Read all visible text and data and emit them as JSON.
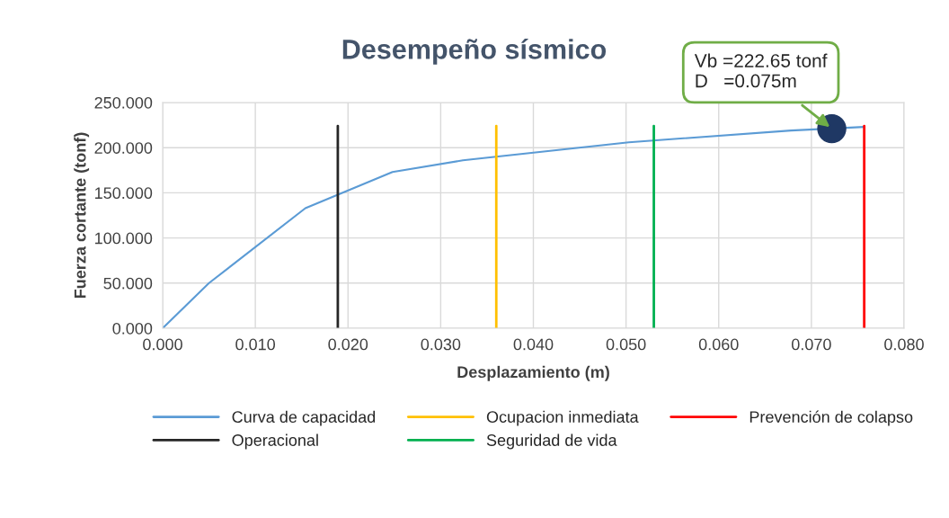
{
  "chart_data": {
    "type": "line",
    "title": "Desempeño sísmico",
    "xlabel": "Desplazamiento (m)",
    "ylabel": "Fuerza cortante (tonf)",
    "series": [
      {
        "name": "Curva de capacidad",
        "color": "#5b9bd5",
        "x": [
          0,
          0.005,
          0.0154,
          0.0248,
          0.0324,
          0.0503,
          0.0678,
          0.0757
        ],
        "values": [
          0,
          50,
          133,
          173,
          186,
          206,
          219,
          223
        ]
      },
      {
        "name": "Operacional",
        "color": "#262626",
        "x": [
          0.0189,
          0.0189
        ],
        "values": [
          0,
          224
        ]
      },
      {
        "name": "Ocupacion inmediata",
        "color": "#ffc000",
        "x": [
          0.036,
          0.036
        ],
        "values": [
          0,
          224
        ]
      },
      {
        "name": "Seguridad de vida",
        "color": "#00b050",
        "x": [
          0.053,
          0.053
        ],
        "values": [
          0,
          224
        ]
      },
      {
        "name": "Prevención de colapso",
        "color": "#ff0000",
        "x": [
          0.0757,
          0.0757
        ],
        "values": [
          0,
          224
        ]
      },
      {
        "type": "scatter",
        "color": "#1f3864",
        "x": [
          0.0722
        ],
        "values": [
          221
        ]
      }
    ],
    "annotations": [
      {
        "text": "Vb =222.65 tonf\nD   =0.075m",
        "x": 0.0722,
        "y": 221
      }
    ],
    "xlim": [
      0,
      0.08
    ],
    "xticks": [
      {
        "value": 0,
        "label": "0.000"
      },
      {
        "value": 0.01,
        "label": "0.010"
      },
      {
        "value": 0.02,
        "label": "0.020"
      },
      {
        "value": 0.03,
        "label": "0.030"
      },
      {
        "value": 0.04,
        "label": "0.040"
      },
      {
        "value": 0.05,
        "label": "0.050"
      },
      {
        "value": 0.06,
        "label": "0.060"
      },
      {
        "value": 0.07,
        "label": "0.070"
      },
      {
        "value": 0.08,
        "label": "0.080"
      }
    ],
    "ylim": [
      0,
      250
    ],
    "yticks": [
      {
        "value": 0,
        "label": "0.000"
      },
      {
        "value": 50,
        "label": "50.000"
      },
      {
        "value": 100,
        "label": "100.000"
      },
      {
        "value": 150,
        "label": "150.000"
      },
      {
        "value": 200,
        "label": "200.000"
      },
      {
        "value": 250,
        "label": "250.000"
      }
    ],
    "grid": true,
    "legend": "bottom"
  }
}
